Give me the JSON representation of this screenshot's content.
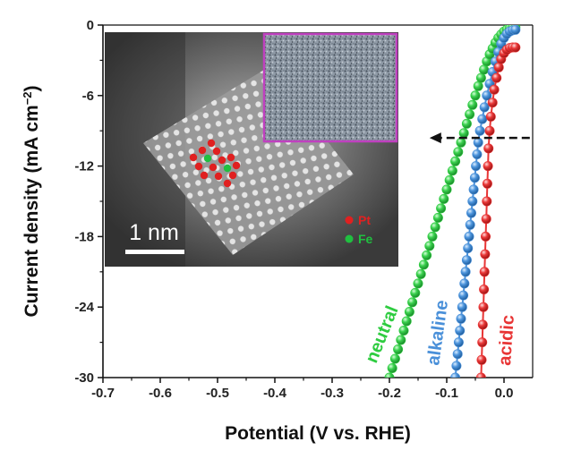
{
  "chart_data": {
    "type": "line",
    "xlabel": "Potential (V vs. RHE)",
    "ylabel_main": "Current density (mA cm",
    "ylabel_sup": "−2",
    "ylabel_end": ")",
    "xlim": [
      -0.7,
      0.05
    ],
    "ylim": [
      -30,
      0
    ],
    "x_ticks": [
      -0.7,
      -0.6,
      -0.5,
      -0.4,
      -0.3,
      -0.2,
      -0.1,
      0.0
    ],
    "x_tick_labels": [
      "-0.7",
      "-0.6",
      "-0.5",
      "-0.4",
      "-0.3",
      "-0.2",
      "-0.1",
      "0.0"
    ],
    "y_ticks": [
      0,
      -6,
      -12,
      -18,
      -24,
      -30
    ],
    "y_tick_labels": [
      "0",
      "-6",
      "-12",
      "-18",
      "-24",
      "-30"
    ],
    "series": [
      {
        "name": "neutral",
        "color": "#2ecc40",
        "points": [
          [
            -0.2,
            -30
          ],
          [
            -0.195,
            -29.2
          ],
          [
            -0.19,
            -28.4
          ],
          [
            -0.185,
            -27.6
          ],
          [
            -0.18,
            -26.8
          ],
          [
            -0.175,
            -26.0
          ],
          [
            -0.17,
            -25.2
          ],
          [
            -0.165,
            -24.4
          ],
          [
            -0.16,
            -23.6
          ],
          [
            -0.155,
            -22.8
          ],
          [
            -0.15,
            -22.0
          ],
          [
            -0.145,
            -21.2
          ],
          [
            -0.14,
            -20.4
          ],
          [
            -0.135,
            -19.6
          ],
          [
            -0.13,
            -18.8
          ],
          [
            -0.125,
            -18.0
          ],
          [
            -0.12,
            -17.2
          ],
          [
            -0.115,
            -16.4
          ],
          [
            -0.11,
            -15.6
          ],
          [
            -0.105,
            -14.8
          ],
          [
            -0.1,
            -14.0
          ],
          [
            -0.095,
            -13.2
          ],
          [
            -0.09,
            -12.4
          ],
          [
            -0.085,
            -11.6
          ],
          [
            -0.08,
            -10.8
          ],
          [
            -0.075,
            -10.0
          ],
          [
            -0.07,
            -9.2
          ],
          [
            -0.065,
            -8.4
          ],
          [
            -0.06,
            -7.6
          ],
          [
            -0.055,
            -6.8
          ],
          [
            -0.05,
            -6.0
          ],
          [
            -0.045,
            -5.2
          ],
          [
            -0.04,
            -4.5
          ],
          [
            -0.035,
            -3.8
          ],
          [
            -0.03,
            -3.1
          ],
          [
            -0.025,
            -2.5
          ],
          [
            -0.02,
            -2.0
          ],
          [
            -0.015,
            -1.5
          ],
          [
            -0.01,
            -1.1
          ],
          [
            -0.005,
            -0.8
          ],
          [
            0.0,
            -0.55
          ],
          [
            0.005,
            -0.38
          ],
          [
            0.01,
            -0.28
          ],
          [
            0.015,
            -0.22
          ],
          [
            0.02,
            -0.2
          ]
        ]
      },
      {
        "name": "alkaline",
        "color": "#4a90d9",
        "points": [
          [
            -0.085,
            -30
          ],
          [
            -0.083,
            -29.0
          ],
          [
            -0.081,
            -28.0
          ],
          [
            -0.079,
            -27.0
          ],
          [
            -0.077,
            -26.0
          ],
          [
            -0.075,
            -25.0
          ],
          [
            -0.073,
            -24.0
          ],
          [
            -0.071,
            -23.0
          ],
          [
            -0.069,
            -22.0
          ],
          [
            -0.067,
            -21.0
          ],
          [
            -0.065,
            -20.0
          ],
          [
            -0.063,
            -19.0
          ],
          [
            -0.061,
            -18.0
          ],
          [
            -0.059,
            -17.0
          ],
          [
            -0.057,
            -16.0
          ],
          [
            -0.055,
            -15.0
          ],
          [
            -0.053,
            -14.0
          ],
          [
            -0.051,
            -13.0
          ],
          [
            -0.049,
            -12.0
          ],
          [
            -0.047,
            -11.0
          ],
          [
            -0.045,
            -10.0
          ],
          [
            -0.042,
            -9.0
          ],
          [
            -0.038,
            -8.0
          ],
          [
            -0.034,
            -7.0
          ],
          [
            -0.03,
            -6.0
          ],
          [
            -0.025,
            -5.0
          ],
          [
            -0.02,
            -4.0
          ],
          [
            -0.015,
            -3.1
          ],
          [
            -0.01,
            -2.3
          ],
          [
            -0.005,
            -1.6
          ],
          [
            0.0,
            -1.1
          ],
          [
            0.005,
            -0.75
          ],
          [
            0.01,
            -0.55
          ],
          [
            0.015,
            -0.45
          ],
          [
            0.02,
            -0.4
          ]
        ]
      },
      {
        "name": "acidic",
        "color": "#e83535",
        "points": [
          [
            -0.04,
            -30
          ],
          [
            -0.039,
            -28.5
          ],
          [
            -0.038,
            -27.0
          ],
          [
            -0.037,
            -25.5
          ],
          [
            -0.036,
            -24.0
          ],
          [
            -0.035,
            -22.5
          ],
          [
            -0.034,
            -21.0
          ],
          [
            -0.033,
            -19.5
          ],
          [
            -0.032,
            -18.0
          ],
          [
            -0.031,
            -16.5
          ],
          [
            -0.03,
            -15.0
          ],
          [
            -0.029,
            -13.5
          ],
          [
            -0.028,
            -12.0
          ],
          [
            -0.027,
            -10.5
          ],
          [
            -0.025,
            -9.0
          ],
          [
            -0.023,
            -7.8
          ],
          [
            -0.02,
            -6.6
          ],
          [
            -0.017,
            -5.5
          ],
          [
            -0.013,
            -4.5
          ],
          [
            -0.009,
            -3.6
          ],
          [
            -0.005,
            -2.9
          ],
          [
            0.0,
            -2.4
          ],
          [
            0.005,
            -2.1
          ],
          [
            0.01,
            -1.95
          ],
          [
            0.015,
            -1.9
          ],
          [
            0.02,
            -1.9
          ]
        ]
      }
    ],
    "series_labels": [
      "neutral",
      "alkaline",
      "acidic"
    ],
    "arrow": {
      "from_x": 0.045,
      "to_x": -0.13,
      "y": -9.6,
      "style": "dashed"
    },
    "inset": {
      "scale_bar_label": "1 nm",
      "legend": [
        {
          "label": "Pt",
          "color": "#e02020"
        },
        {
          "label": "Fe",
          "color": "#20c040"
        }
      ],
      "sub_inset_border_color": "#c040c0"
    }
  }
}
